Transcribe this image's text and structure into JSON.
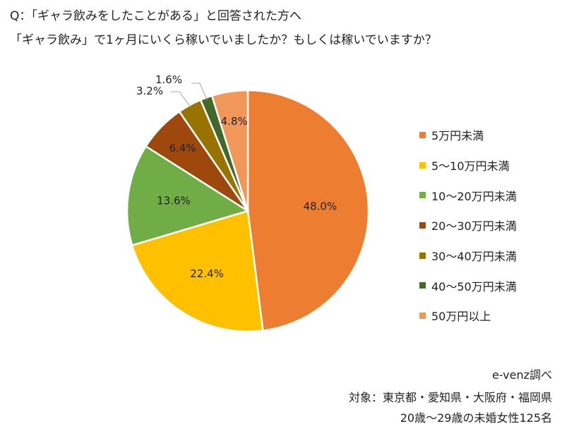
{
  "header": {
    "question_line1": "Q：「ギャラ飲みをしたことがある」と回答された方へ",
    "question_line2": "「ギャラ飲み」で1ヶ月にいくら稼いでいましたか？もしくは稼いでいますか？"
  },
  "chart_data": {
    "type": "pie",
    "title": "",
    "start_angle_deg": 0,
    "direction": "clockwise",
    "categories": [
      "5万円未満",
      "5〜10万円未満",
      "10〜20万円未満",
      "20〜30万円未満",
      "30〜40万円未満",
      "40〜50万円未満",
      "50万円以上"
    ],
    "values": [
      48.0,
      22.4,
      13.6,
      6.4,
      3.2,
      1.6,
      4.8
    ],
    "data_labels": [
      "48.0%",
      "22.4%",
      "13.6%",
      "6.4%",
      "3.2%",
      "1.6%",
      "4.8%"
    ],
    "colors": [
      "#ED7D31",
      "#FFC000",
      "#70AD47",
      "#9E480E",
      "#997300",
      "#43682B",
      "#F1975A"
    ],
    "legend_position": "right"
  },
  "footer": {
    "source": "e-venz調べ",
    "target": "対象：東京都・愛知県・大阪府・福岡県",
    "sample": "20歳〜29歳の未婚女性125名"
  }
}
